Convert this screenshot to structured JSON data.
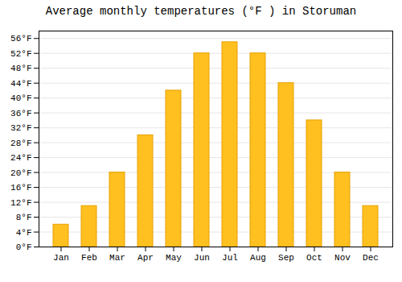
{
  "chart_data": {
    "type": "bar",
    "title": "Average monthly temperatures (°F ) in Storuman",
    "categories": [
      "Jan",
      "Feb",
      "Mar",
      "Apr",
      "May",
      "Jun",
      "Jul",
      "Aug",
      "Sep",
      "Oct",
      "Nov",
      "Dec"
    ],
    "values": [
      6,
      11,
      20,
      30,
      42,
      52,
      55,
      52,
      44,
      34,
      20,
      11
    ],
    "color": "#FFC020",
    "ylim": [
      0,
      58
    ],
    "yticks": [
      {
        "value": 0,
        "label": "0°F"
      },
      {
        "value": 4,
        "label": "4°F"
      },
      {
        "value": 8,
        "label": "8°F"
      },
      {
        "value": 12,
        "label": "12°F"
      },
      {
        "value": 16,
        "label": "16°F"
      },
      {
        "value": 20,
        "label": "20°F"
      },
      {
        "value": 24,
        "label": "24°F"
      },
      {
        "value": 28,
        "label": "28°F"
      },
      {
        "value": 32,
        "label": "32°F"
      },
      {
        "value": 36,
        "label": "36°F"
      },
      {
        "value": 40,
        "label": "40°F"
      },
      {
        "value": 44,
        "label": "44°F"
      },
      {
        "value": 48,
        "label": "48°F"
      },
      {
        "value": 52,
        "label": "52°F"
      },
      {
        "value": 56,
        "label": "56°F"
      }
    ],
    "grid": true
  }
}
